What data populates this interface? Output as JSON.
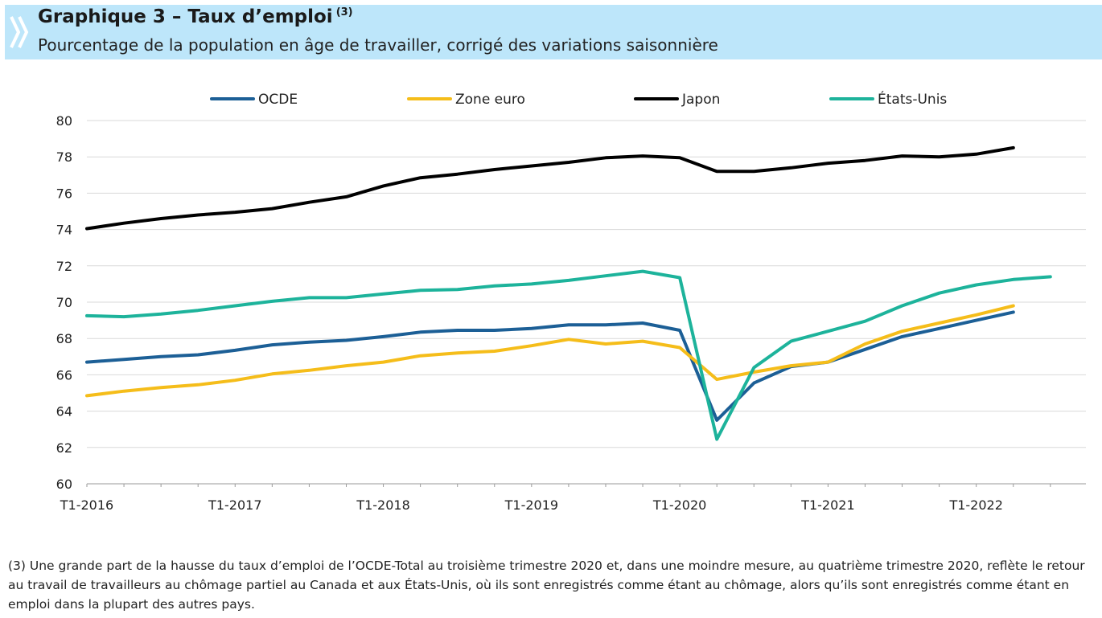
{
  "header": {
    "title": "Graphique 3 – Taux d’emploi",
    "title_note": "(3)",
    "subtitle": "Pourcentage de la population en âge de travailler, corrigé des variations saisonnière",
    "colors": {
      "banner": "#bde6fa",
      "logo": "#ffffff"
    }
  },
  "chart_data": {
    "type": "line",
    "ylim": [
      60,
      80
    ],
    "yticks": [
      60,
      62,
      64,
      66,
      68,
      70,
      72,
      74,
      76,
      78,
      80
    ],
    "grid": "horizontal",
    "legend_position": "top",
    "x": [
      "T1-2016",
      "T2-2016",
      "T3-2016",
      "T4-2016",
      "T1-2017",
      "T2-2017",
      "T3-2017",
      "T4-2017",
      "T1-2018",
      "T2-2018",
      "T3-2018",
      "T4-2018",
      "T1-2019",
      "T2-2019",
      "T3-2019",
      "T4-2019",
      "T1-2020",
      "T2-2020",
      "T3-2020",
      "T4-2020",
      "T1-2021",
      "T2-2021",
      "T3-2021",
      "T4-2021",
      "T1-2022",
      "T2-2022",
      "T3-2022"
    ],
    "x_tick_labels": [
      "T1-2016",
      "T1-2017",
      "T1-2018",
      "T1-2019",
      "T1-2020",
      "T1-2021",
      "T1-2022"
    ],
    "series": [
      {
        "name": "OCDE",
        "color": "#1c5f96",
        "values": [
          66.7,
          66.85,
          67.0,
          67.1,
          67.35,
          67.65,
          67.8,
          67.9,
          68.1,
          68.35,
          68.45,
          68.45,
          68.55,
          68.75,
          68.75,
          68.85,
          68.45,
          63.5,
          65.55,
          66.45,
          66.7,
          67.4,
          68.1,
          68.55,
          69.0,
          69.45,
          null
        ]
      },
      {
        "name": "Zone euro",
        "color": "#f5bd1a",
        "values": [
          64.85,
          65.1,
          65.3,
          65.45,
          65.7,
          66.05,
          66.25,
          66.5,
          66.7,
          67.05,
          67.2,
          67.3,
          67.6,
          67.95,
          67.7,
          67.85,
          67.5,
          65.75,
          66.15,
          66.5,
          66.7,
          67.7,
          68.4,
          68.85,
          69.3,
          69.8,
          null
        ]
      },
      {
        "name": "Japon",
        "color": "#000000",
        "values": [
          74.05,
          74.35,
          74.6,
          74.8,
          74.95,
          75.15,
          75.5,
          75.8,
          76.4,
          76.85,
          77.05,
          77.3,
          77.5,
          77.7,
          77.95,
          78.05,
          77.95,
          77.2,
          77.2,
          77.4,
          77.65,
          77.8,
          78.05,
          78.0,
          78.15,
          78.5,
          null
        ]
      },
      {
        "name": "États-Unis",
        "color": "#1db39b",
        "values": [
          69.25,
          69.2,
          69.35,
          69.55,
          69.8,
          70.05,
          70.25,
          70.25,
          70.45,
          70.65,
          70.7,
          70.9,
          71.0,
          71.2,
          71.45,
          71.7,
          71.35,
          62.45,
          66.4,
          67.85,
          68.4,
          68.95,
          69.8,
          70.5,
          70.95,
          71.25,
          71.4
        ]
      }
    ]
  },
  "footnote": "(3) Une grande part de la hausse du taux d’emploi de l’OCDE-Total au troisième trimestre 2020 et, dans une moindre mesure, au quatrième trimestre 2020, reflète le retour au travail de travailleurs au chômage partiel au Canada et aux États-Unis, où ils sont enregistrés comme étant au chômage, alors qu’ils sont enregistrés comme étant en emploi dans la plupart des autres pays."
}
